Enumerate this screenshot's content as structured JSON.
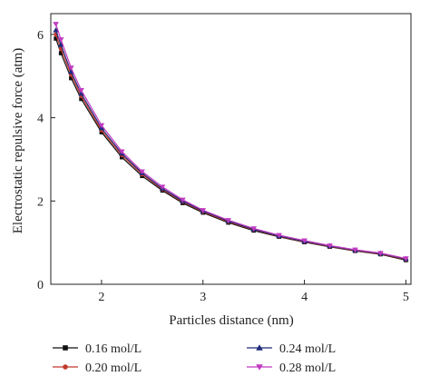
{
  "chart_data": {
    "type": "line",
    "title": "",
    "xlabel": "Particles distance (nm)",
    "ylabel": "Electrostatic repulsive force (atm)",
    "xlim": [
      1.5,
      5.05
    ],
    "ylim": [
      0,
      6.5
    ],
    "xticks": [
      2,
      3,
      4,
      5
    ],
    "yticks": [
      0,
      2,
      4,
      6
    ],
    "ytick_labels": [
      "0",
      "2",
      "4",
      "6"
    ],
    "grid": false,
    "legend_position": "bottom",
    "x": [
      1.55,
      1.6,
      1.7,
      1.8,
      2.0,
      2.2,
      2.4,
      2.6,
      2.8,
      3.0,
      3.25,
      3.5,
      3.75,
      4.0,
      4.25,
      4.5,
      4.75,
      5.0
    ],
    "series": [
      {
        "name": "0.16 mol/L",
        "color": "#111111",
        "marker": "square",
        "values": [
          5.9,
          5.55,
          4.95,
          4.45,
          3.65,
          3.05,
          2.6,
          2.25,
          1.95,
          1.72,
          1.48,
          1.29,
          1.14,
          1.01,
          0.9,
          0.8,
          0.72,
          0.58
        ]
      },
      {
        "name": "0.20 mol/L",
        "color": "#c0392b",
        "marker": "circle",
        "values": [
          6.0,
          5.65,
          5.03,
          4.52,
          3.7,
          3.1,
          2.64,
          2.28,
          1.98,
          1.74,
          1.5,
          1.31,
          1.15,
          1.02,
          0.91,
          0.81,
          0.73,
          0.6
        ]
      },
      {
        "name": "0.24 mol/L",
        "color": "#1f2a7a",
        "marker": "triangle-up",
        "values": [
          6.1,
          5.75,
          5.1,
          4.58,
          3.75,
          3.14,
          2.67,
          2.3,
          2.0,
          1.76,
          1.52,
          1.32,
          1.16,
          1.03,
          0.92,
          0.82,
          0.74,
          0.61
        ]
      },
      {
        "name": "0.28 mol/L",
        "color": "#c13bc1",
        "marker": "triangle-down",
        "values": [
          6.25,
          5.88,
          5.2,
          4.66,
          3.82,
          3.19,
          2.71,
          2.34,
          2.03,
          1.78,
          1.54,
          1.34,
          1.18,
          1.05,
          0.93,
          0.83,
          0.75,
          0.62
        ]
      }
    ]
  }
}
